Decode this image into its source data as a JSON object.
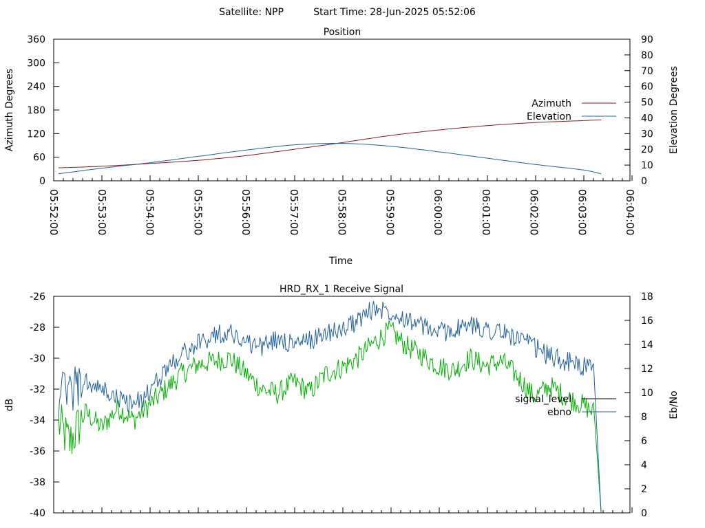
{
  "header": {
    "satellite": "Satellite: NPP",
    "start_time": "Start Time: 28-Jun-2025 05:52:06"
  },
  "colors": {
    "azimuth": "#8b1a1a",
    "elevation": "#2060a0",
    "signal_level": "#00b000",
    "ebno": "#2060a0",
    "axis": "#000000"
  },
  "chart_data": [
    {
      "type": "line",
      "title": "Position",
      "xlabel": "Time",
      "ylabel": "Azimuth Degrees",
      "y2label": "Elevation Degrees",
      "x_ticks": [
        "05:52:00",
        "05:53:00",
        "05:54:00",
        "05:55:00",
        "05:56:00",
        "05:57:00",
        "05:58:00",
        "05:59:00",
        "06:00:00",
        "06:01:00",
        "06:02:00",
        "06:03:00",
        "06:04:00"
      ],
      "xlim": [
        "05:52:00",
        "06:04:00"
      ],
      "ylim": [
        0,
        360
      ],
      "y_ticks": [
        0,
        60,
        120,
        180,
        240,
        300,
        360
      ],
      "y2lim": [
        0,
        90
      ],
      "y2_ticks": [
        0,
        10,
        20,
        30,
        40,
        50,
        60,
        70,
        80,
        90
      ],
      "grid": false,
      "legend": "right",
      "series": [
        {
          "name": "Azimuth",
          "axis": "y",
          "points": [
            [
              "05:52:06",
              33
            ],
            [
              "05:53:00",
              37
            ],
            [
              "05:54:00",
              44
            ],
            [
              "05:55:00",
              52
            ],
            [
              "05:56:00",
              64
            ],
            [
              "05:57:00",
              80
            ],
            [
              "05:58:00",
              97
            ],
            [
              "05:59:00",
              115
            ],
            [
              "06:00:00",
              129
            ],
            [
              "06:01:00",
              140
            ],
            [
              "06:02:00",
              148
            ],
            [
              "06:03:00",
              153
            ],
            [
              "06:03:24",
              155
            ]
          ]
        },
        {
          "name": "Elevation",
          "axis": "y2",
          "points": [
            [
              "05:52:06",
              4.5
            ],
            [
              "05:53:00",
              8
            ],
            [
              "05:54:00",
              11.5
            ],
            [
              "05:55:00",
              15.5
            ],
            [
              "05:56:00",
              19.5
            ],
            [
              "05:57:00",
              22.8
            ],
            [
              "05:58:00",
              23.8
            ],
            [
              "05:59:00",
              22
            ],
            [
              "06:00:00",
              18.5
            ],
            [
              "06:01:00",
              14.5
            ],
            [
              "06:02:00",
              10.5
            ],
            [
              "06:03:00",
              7
            ],
            [
              "06:03:24",
              4.5
            ]
          ]
        }
      ]
    },
    {
      "type": "line",
      "title": "HRD_RX_1 Receive Signal",
      "xlabel": "",
      "ylabel": "dB",
      "y2label": "Eb/No",
      "xlim": [
        "05:52:00",
        "06:04:00"
      ],
      "ylim": [
        -40,
        -26
      ],
      "y_ticks": [
        -40,
        -38,
        -36,
        -34,
        -32,
        -30,
        -28,
        -26
      ],
      "y2lim": [
        0,
        18
      ],
      "y2_ticks": [
        0,
        2,
        4,
        6,
        8,
        10,
        12,
        14,
        16,
        18
      ],
      "grid": false,
      "legend": "right",
      "series": [
        {
          "name": "signal_level",
          "axis": "y",
          "points": [
            [
              "05:52:06",
              -34.2
            ],
            [
              "05:52:20",
              -35.5
            ],
            [
              "05:52:40",
              -33.5
            ],
            [
              "05:53:00",
              -34.5
            ],
            [
              "05:53:20",
              -33.2
            ],
            [
              "05:53:40",
              -34.0
            ],
            [
              "05:54:00",
              -33.0
            ],
            [
              "05:54:20",
              -32.0
            ],
            [
              "05:54:40",
              -31.0
            ],
            [
              "05:55:00",
              -30.4
            ],
            [
              "05:55:20",
              -30.2
            ],
            [
              "05:55:40",
              -30.0
            ],
            [
              "05:56:00",
              -31.0
            ],
            [
              "05:56:20",
              -32.0
            ],
            [
              "05:56:40",
              -32.3
            ],
            [
              "05:57:00",
              -31.5
            ],
            [
              "05:57:20",
              -32.2
            ],
            [
              "05:57:40",
              -31.0
            ],
            [
              "05:58:00",
              -30.6
            ],
            [
              "05:58:20",
              -30.0
            ],
            [
              "05:58:40",
              -29.0
            ],
            [
              "05:59:00",
              -28.2
            ],
            [
              "05:59:20",
              -29.2
            ],
            [
              "05:59:40",
              -29.8
            ],
            [
              "06:00:00",
              -30.5
            ],
            [
              "06:00:20",
              -30.8
            ],
            [
              "06:00:40",
              -30.0
            ],
            [
              "06:01:00",
              -30.5
            ],
            [
              "06:01:20",
              -30.2
            ],
            [
              "06:01:40",
              -31.2
            ],
            [
              "06:02:00",
              -32.5
            ],
            [
              "06:02:20",
              -31.8
            ],
            [
              "06:02:40",
              -32.5
            ],
            [
              "06:03:00",
              -33.0
            ],
            [
              "06:03:15",
              -33.5
            ],
            [
              "06:03:24",
              -40.0
            ]
          ]
        },
        {
          "name": "ebno",
          "axis": "y2",
          "points": [
            [
              "05:52:06",
              9.8
            ],
            [
              "05:52:20",
              10.2
            ],
            [
              "05:52:40",
              10.8
            ],
            [
              "05:53:00",
              10.2
            ],
            [
              "05:53:20",
              9.5
            ],
            [
              "05:53:40",
              9.0
            ],
            [
              "05:54:00",
              10.0
            ],
            [
              "05:54:20",
              12.0
            ],
            [
              "05:54:40",
              13.2
            ],
            [
              "05:55:00",
              14.0
            ],
            [
              "05:55:20",
              14.8
            ],
            [
              "05:55:40",
              15.0
            ],
            [
              "05:56:00",
              14.2
            ],
            [
              "05:56:20",
              13.8
            ],
            [
              "05:56:40",
              14.5
            ],
            [
              "05:57:00",
              14.0
            ],
            [
              "05:57:20",
              14.3
            ],
            [
              "05:57:40",
              15.0
            ],
            [
              "05:58:00",
              15.2
            ],
            [
              "05:58:20",
              16.0
            ],
            [
              "05:58:40",
              17.0
            ],
            [
              "05:59:00",
              16.8
            ],
            [
              "05:59:20",
              16.2
            ],
            [
              "05:59:40",
              15.5
            ],
            [
              "06:00:00",
              15.0
            ],
            [
              "06:00:20",
              15.2
            ],
            [
              "06:00:40",
              15.6
            ],
            [
              "06:01:00",
              15.3
            ],
            [
              "06:01:20",
              15.0
            ],
            [
              "06:01:40",
              14.5
            ],
            [
              "06:02:00",
              13.8
            ],
            [
              "06:02:20",
              13.0
            ],
            [
              "06:02:40",
              12.6
            ],
            [
              "06:03:00",
              12.2
            ],
            [
              "06:03:15",
              11.8
            ],
            [
              "06:03:24",
              0.0
            ]
          ]
        }
      ]
    }
  ]
}
